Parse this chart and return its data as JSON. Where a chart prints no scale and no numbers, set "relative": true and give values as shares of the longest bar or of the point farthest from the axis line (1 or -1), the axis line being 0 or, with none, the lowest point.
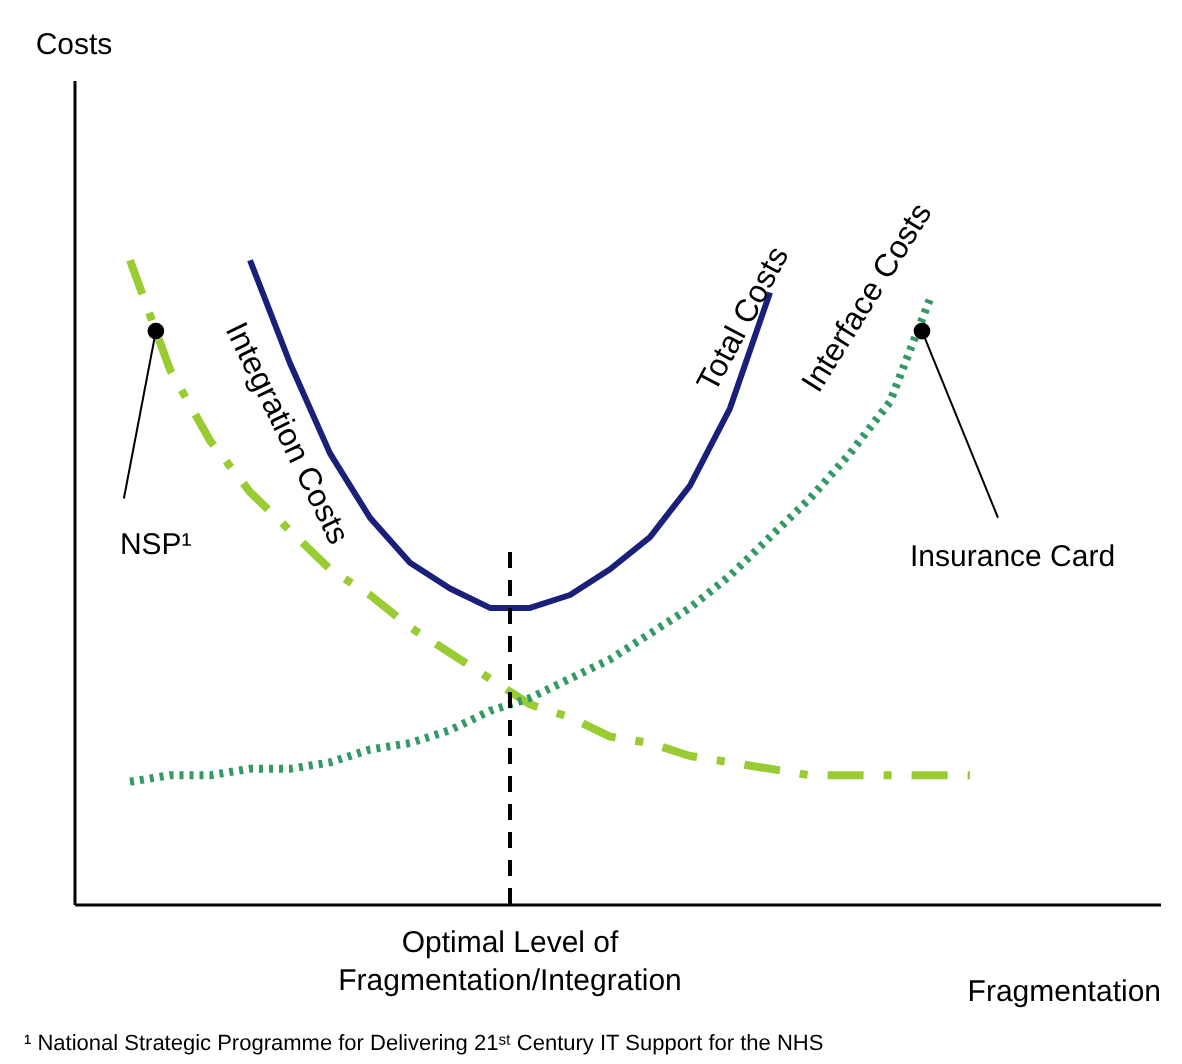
{
  "chart_data": {
    "type": "line",
    "relative": true,
    "xlabel": "Fragmentation",
    "grid": false,
    "categories": [
      null,
      null,
      null,
      null,
      null,
      null,
      null,
      null,
      null,
      null,
      null,
      null,
      null,
      null,
      null,
      null,
      null,
      null,
      null,
      null,
      null,
      null
    ],
    "series": [
      {
        "name": "Integration Costs",
        "color": "#99cc33",
        "line_style": "dashdot",
        "values": [
          1.0,
          0.83,
          0.72,
          0.64,
          0.58,
          0.52,
          0.48,
          0.43,
          0.39,
          0.35,
          0.31,
          0.29,
          0.26,
          0.25,
          0.23,
          0.22,
          0.21,
          0.2,
          0.2,
          0.2,
          0.2,
          0.2
        ]
      },
      {
        "name": "Total Costs",
        "color": "#1a1f7a",
        "line_style": "solid",
        "values": [
          null,
          null,
          null,
          1.0,
          0.84,
          0.7,
          0.6,
          0.53,
          0.49,
          0.46,
          0.46,
          0.48,
          0.52,
          0.57,
          0.65,
          0.77,
          0.95,
          null,
          null,
          null,
          null,
          null
        ]
      },
      {
        "name": "Interface Costs",
        "color": "#339966",
        "line_style": "dotted",
        "values": [
          0.19,
          0.2,
          0.2,
          0.21,
          0.21,
          0.22,
          0.24,
          0.25,
          0.27,
          0.3,
          0.32,
          0.35,
          0.38,
          0.42,
          0.46,
          0.51,
          0.57,
          0.63,
          0.7,
          0.78,
          0.94,
          null
        ]
      }
    ],
    "annotations": [
      "Costs",
      {
        "text": "NSP¹",
        "y": 0.89
      },
      "Insurance Card",
      "Optimal Level of Fragmentation/Integration",
      "¹ National Strategic Programme for Delivering 21ˢᵗ Century IT Support for the NHS"
    ]
  }
}
